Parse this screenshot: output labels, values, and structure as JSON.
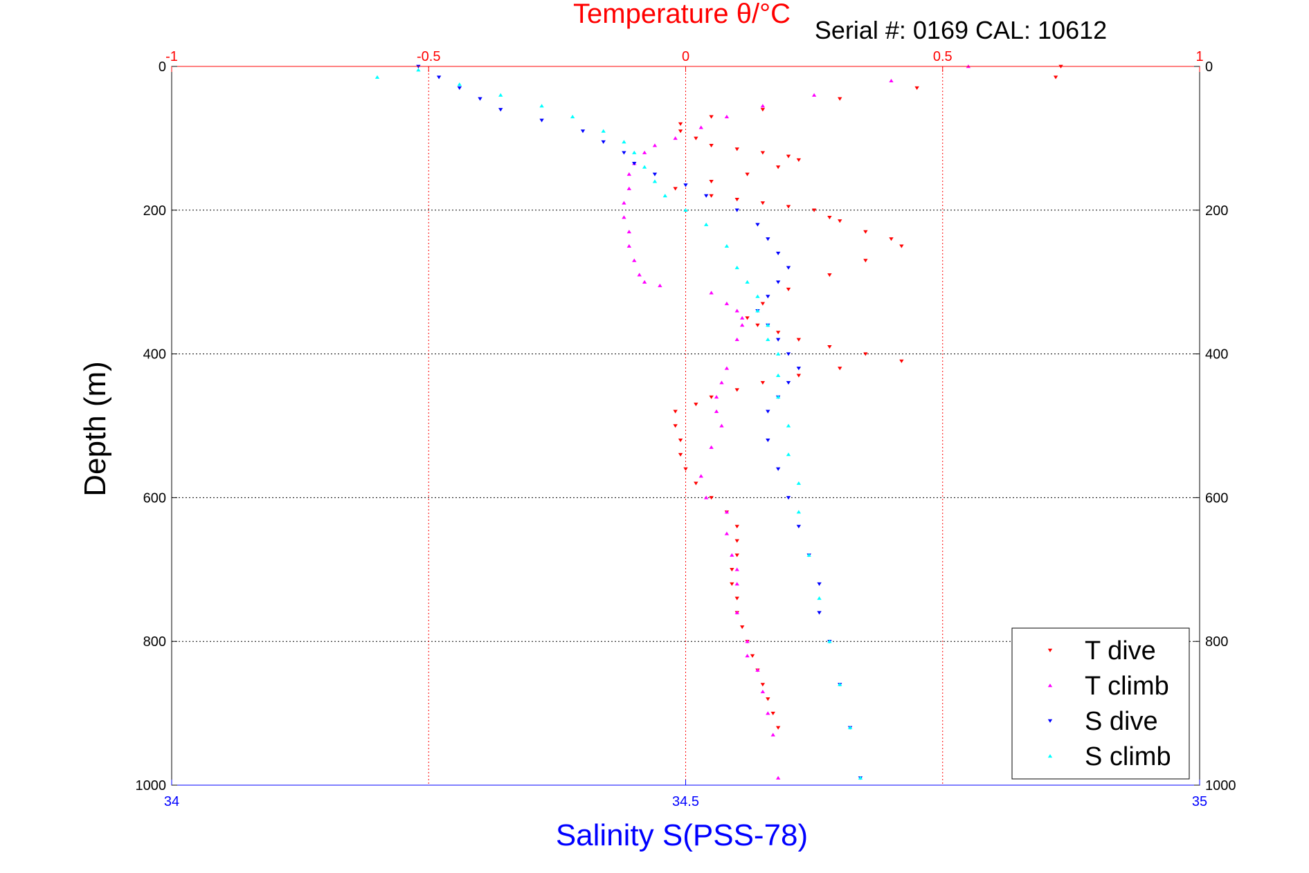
{
  "chart_data": {
    "type": "scatter",
    "title": "Temperature θ/°C",
    "subtitle": "Serial #: 0169 CAL: 10612",
    "ylabel": "Depth (m)",
    "xlabel_bottom": "Salinity S(PSS-78)",
    "title_color": "#ff0000",
    "xlabel_bottom_color": "#0000ff",
    "y_ticks": [
      "0",
      "200",
      "400",
      "600",
      "800",
      "1000"
    ],
    "y_tick_values": [
      0,
      200,
      400,
      600,
      800,
      1000
    ],
    "top_ticks": [
      "-1",
      "-0.5",
      "0",
      "0.5",
      "1"
    ],
    "top_tick_values": [
      -1,
      -0.5,
      0,
      0.5,
      1
    ],
    "bottom_ticks": [
      "34",
      "34.5",
      "35"
    ],
    "bottom_tick_values": [
      34,
      34.5,
      35
    ],
    "ylim": [
      0,
      1000
    ],
    "y_reversed": true,
    "temperature_xlim": [
      -1,
      1
    ],
    "salinity_xlim": [
      34,
      35
    ],
    "grid": true,
    "legend_position": "bottom-right",
    "series": [
      {
        "name": "T dive",
        "axis": "temperature",
        "color": "#ff0000",
        "marker": "triangle-down",
        "x": [
          0.73,
          0.72,
          0.45,
          0.3,
          0.15,
          0.05,
          -0.01,
          -0.01,
          0.02,
          0.05,
          0.1,
          0.15,
          0.2,
          0.22,
          0.18,
          0.12,
          0.05,
          -0.02,
          0.05,
          0.1,
          0.15,
          0.2,
          0.25,
          0.28,
          0.3,
          0.35,
          0.4,
          0.42,
          0.35,
          0.28,
          0.2,
          0.15,
          0.12,
          0.14,
          0.18,
          0.22,
          0.28,
          0.35,
          0.42,
          0.3,
          0.22,
          0.15,
          0.1,
          0.05,
          0.02,
          -0.02,
          -0.02,
          -0.01,
          -0.01,
          0.0,
          0.02,
          0.05,
          0.08,
          0.1,
          0.1,
          0.1,
          0.09,
          0.09,
          0.1,
          0.1,
          0.11,
          0.12,
          0.13,
          0.14,
          0.15,
          0.16,
          0.17,
          0.18
        ],
        "y": [
          0,
          15,
          30,
          45,
          60,
          70,
          80,
          90,
          100,
          110,
          115,
          120,
          125,
          130,
          140,
          150,
          160,
          170,
          180,
          185,
          190,
          195,
          200,
          210,
          215,
          230,
          240,
          250,
          270,
          290,
          310,
          330,
          350,
          360,
          370,
          380,
          390,
          400,
          410,
          420,
          430,
          440,
          450,
          460,
          470,
          480,
          500,
          520,
          540,
          560,
          580,
          600,
          620,
          640,
          660,
          680,
          700,
          720,
          740,
          760,
          780,
          800,
          820,
          840,
          860,
          880,
          900,
          920
        ]
      },
      {
        "name": "T climb",
        "axis": "temperature",
        "color": "#ff00ff",
        "marker": "triangle-up",
        "x": [
          0.55,
          0.4,
          0.25,
          0.15,
          0.08,
          0.03,
          -0.02,
          -0.06,
          -0.08,
          -0.1,
          -0.11,
          -0.11,
          -0.12,
          -0.12,
          -0.11,
          -0.11,
          -0.1,
          -0.09,
          -0.08,
          -0.05,
          0.05,
          0.08,
          0.1,
          0.11,
          0.11,
          0.1,
          0.08,
          0.07,
          0.06,
          0.06,
          0.07,
          0.05,
          0.03,
          0.04,
          0.08,
          0.08,
          0.09,
          0.1,
          0.1,
          0.1,
          0.12,
          0.12,
          0.14,
          0.15,
          0.16,
          0.17,
          0.18
        ],
        "y": [
          0,
          20,
          40,
          55,
          70,
          85,
          100,
          110,
          120,
          135,
          150,
          170,
          190,
          210,
          230,
          250,
          270,
          290,
          300,
          305,
          315,
          330,
          340,
          350,
          360,
          380,
          420,
          440,
          460,
          480,
          500,
          530,
          570,
          600,
          620,
          650,
          680,
          700,
          720,
          760,
          800,
          820,
          840,
          870,
          900,
          930,
          990
        ]
      },
      {
        "name": "S dive",
        "axis": "salinity",
        "color": "#0000ff",
        "marker": "triangle-down",
        "x": [
          34.24,
          34.26,
          34.28,
          34.3,
          34.32,
          34.36,
          34.4,
          34.42,
          34.44,
          34.45,
          34.47,
          34.5,
          34.52,
          34.55,
          34.57,
          34.58,
          34.59,
          34.6,
          34.59,
          34.58,
          34.57,
          34.58,
          34.59,
          34.6,
          34.61,
          34.6,
          34.59,
          34.58,
          34.58,
          34.59,
          34.6,
          34.61,
          34.62,
          34.63,
          34.63,
          34.64,
          34.65,
          34.66,
          34.67
        ],
        "y": [
          0,
          15,
          30,
          45,
          60,
          75,
          90,
          105,
          120,
          135,
          150,
          165,
          180,
          200,
          220,
          240,
          260,
          280,
          300,
          320,
          340,
          360,
          380,
          400,
          420,
          440,
          460,
          480,
          520,
          560,
          600,
          640,
          680,
          720,
          760,
          800,
          860,
          920,
          990
        ]
      },
      {
        "name": "S climb",
        "axis": "salinity",
        "color": "#00ffff",
        "marker": "triangle-up",
        "x": [
          34.2,
          34.24,
          34.28,
          34.32,
          34.36,
          34.39,
          34.42,
          34.44,
          34.45,
          34.46,
          34.47,
          34.48,
          34.5,
          34.52,
          34.54,
          34.55,
          34.56,
          34.57,
          34.57,
          34.58,
          34.58,
          34.59,
          34.59,
          34.59,
          34.6,
          34.6,
          34.61,
          34.61,
          34.62,
          34.63,
          34.64,
          34.65,
          34.66,
          34.67
        ],
        "y": [
          15,
          5,
          25,
          40,
          55,
          70,
          90,
          105,
          120,
          140,
          160,
          180,
          200,
          220,
          250,
          280,
          300,
          320,
          340,
          360,
          380,
          400,
          430,
          460,
          500,
          540,
          580,
          620,
          680,
          740,
          800,
          860,
          920,
          990
        ]
      }
    ]
  }
}
